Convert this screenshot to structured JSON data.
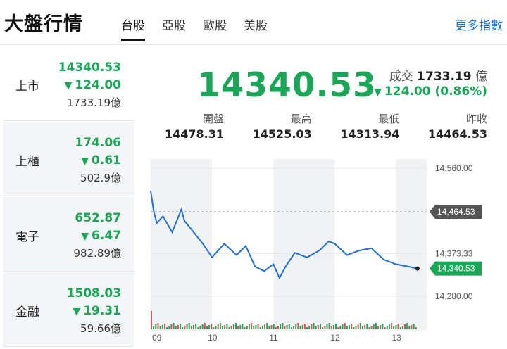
{
  "header": {
    "title": "大盤行情",
    "tabs": [
      "台股",
      "亞股",
      "歐股",
      "美股"
    ],
    "more": "更多指數"
  },
  "sidebar": {
    "items": [
      {
        "name": "上市",
        "price": "14340.53",
        "change": "124.00",
        "volume": "1733.19億"
      },
      {
        "name": "上櫃",
        "price": "174.06",
        "change": "0.61",
        "volume": "502.9億"
      },
      {
        "name": "電子",
        "price": "652.87",
        "change": "6.47",
        "volume": "982.89億"
      },
      {
        "name": "金融",
        "price": "1508.03",
        "change": "19.31",
        "volume": "59.66億"
      }
    ]
  },
  "quote": {
    "price": "14340.53",
    "volume_label": "成交",
    "volume_value": "1733.19",
    "volume_unit": "億",
    "change": "124.00 (0.86%)",
    "stats": [
      {
        "label": "開盤",
        "value": "14478.31"
      },
      {
        "label": "最高",
        "value": "14525.03"
      },
      {
        "label": "最低",
        "value": "14313.94"
      },
      {
        "label": "昨收",
        "value": "14464.53"
      }
    ]
  },
  "colors": {
    "down": "#1aa657",
    "line": "#1f6fd6",
    "prev": "#555555"
  },
  "chart_data": {
    "type": "line",
    "x_ticks": [
      "09",
      "10",
      "11",
      "12",
      "13"
    ],
    "y_ticks": [
      "14,560.00",
      "14,373.33",
      "14,280.00"
    ],
    "ylim": [
      14220,
      14580
    ],
    "prev_close_label": "14,464.53",
    "last_label": "14,340.53",
    "series": [
      {
        "x": [
          9.0,
          9.05,
          9.1,
          9.2,
          9.35,
          9.5,
          9.55,
          9.7,
          9.85,
          10.0,
          10.2,
          10.4,
          10.55,
          10.7,
          10.85,
          11.0,
          11.1,
          11.2,
          11.35,
          11.55,
          11.75,
          11.9,
          12.0,
          12.2,
          12.4,
          12.6,
          12.8,
          13.0,
          13.2,
          13.35
        ],
        "y": [
          14510,
          14465,
          14440,
          14455,
          14420,
          14470,
          14445,
          14420,
          14395,
          14365,
          14395,
          14370,
          14390,
          14345,
          14335,
          14350,
          14320,
          14345,
          14375,
          14365,
          14380,
          14400,
          14395,
          14370,
          14380,
          14385,
          14360,
          14350,
          14345,
          14340.53
        ]
      }
    ],
    "prev_close": 14464.53
  }
}
